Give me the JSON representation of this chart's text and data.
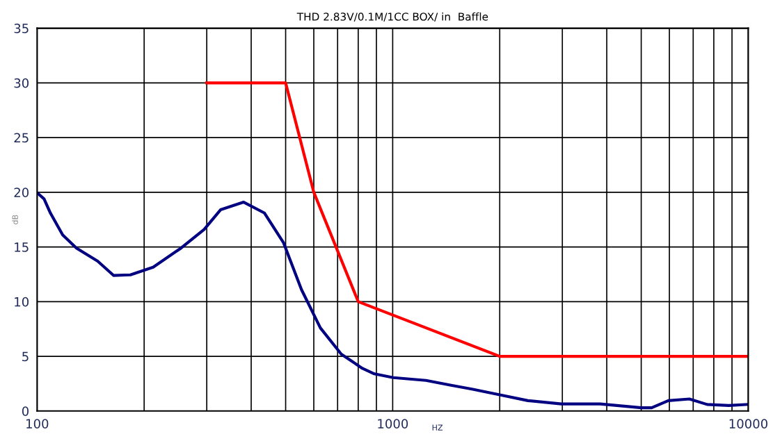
{
  "chart_data": {
    "type": "line",
    "title": "THD 2.83V/0.1M/1CC BOX/ in  Baffle",
    "xlabel": "HZ",
    "ylabel": "dB",
    "log": "x",
    "grid": true,
    "xlim": [
      100,
      10000
    ],
    "ylim": [
      0,
      35
    ],
    "xticks": [
      100,
      {
        "value": 200,
        "label": null
      },
      {
        "value": 300,
        "label": null
      },
      {
        "value": 400,
        "label": null
      },
      {
        "value": 500,
        "label": null
      },
      {
        "value": 600,
        "label": null
      },
      {
        "value": 700,
        "label": null
      },
      {
        "value": 800,
        "label": null
      },
      {
        "value": 900,
        "label": null
      },
      1000,
      {
        "value": 2000,
        "label": null
      },
      {
        "value": 3000,
        "label": null
      },
      {
        "value": 4000,
        "label": null
      },
      {
        "value": 5000,
        "label": null
      },
      {
        "value": 6000,
        "label": null
      },
      {
        "value": 7000,
        "label": null
      },
      {
        "value": 8000,
        "label": null
      },
      {
        "value": 9000,
        "label": null
      },
      10000
    ],
    "yticks": [
      0,
      5,
      10,
      15,
      20,
      25,
      30,
      35
    ],
    "series": [
      {
        "color": "#000080",
        "x": [
          100,
          104.6,
          109,
          118,
          129,
          148,
          164,
          183,
          212,
          254,
          295,
          328,
          381,
          436,
          493,
          554,
          626,
          717,
          822,
          888,
          1004,
          1240,
          1460,
          1670,
          1990,
          2400,
          2980,
          3830,
          5000,
          5350,
          5960,
          6830,
          7660,
          8820,
          9960
        ],
        "values": [
          19.95,
          19.4,
          18.1,
          16.1,
          14.9,
          13.7,
          12.4,
          12.45,
          13.15,
          14.9,
          16.6,
          18.4,
          19.1,
          18.1,
          15.4,
          11.1,
          7.6,
          5.2,
          3.9,
          3.4,
          3.05,
          2.8,
          2.35,
          2.0,
          1.5,
          0.95,
          0.65,
          0.65,
          0.3,
          0.3,
          0.95,
          1.1,
          0.6,
          0.5,
          0.6
        ]
      },
      {
        "color": "#ff0000",
        "x": [
          300,
          500,
          600,
          800,
          2000,
          10000
        ],
        "values": [
          30,
          30,
          20,
          10,
          5,
          5
        ]
      }
    ]
  }
}
